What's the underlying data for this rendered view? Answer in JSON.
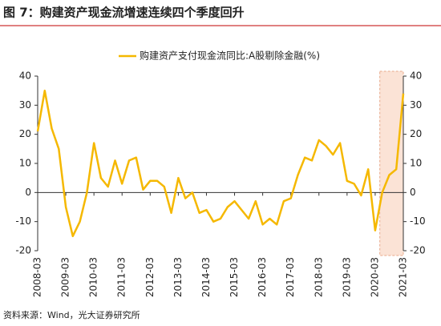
{
  "chart_data": {
    "type": "line",
    "title": "图 7：购建资产现金流增速连续四个季度回升",
    "source": "资料来源：Wind，光大证券研究所",
    "categories": [
      "2008-03",
      null,
      null,
      null,
      "2009-03",
      null,
      null,
      null,
      "2010-03",
      null,
      null,
      null,
      "2011-03",
      null,
      null,
      null,
      "2012-03",
      null,
      null,
      null,
      "2013-03",
      null,
      null,
      null,
      "2014-03",
      null,
      null,
      null,
      "2015-03",
      null,
      null,
      null,
      "2016-03",
      null,
      null,
      null,
      "2017-03",
      null,
      null,
      null,
      "2018-03",
      null,
      null,
      null,
      "2019-03",
      null,
      null,
      null,
      "2020-03",
      null,
      null,
      null,
      "2021-03"
    ],
    "series": [
      {
        "name": "购建资产支付现金流同比:A股剔除金融(%)",
        "color": "#f5b800",
        "values": [
          21,
          35,
          22,
          15,
          -5,
          -15,
          -10,
          0,
          17,
          5,
          2,
          11,
          3,
          11,
          12,
          1,
          4,
          4,
          2,
          -7,
          5,
          -2,
          0,
          -7,
          -6,
          -10,
          -9,
          -5,
          -3,
          -6,
          -9,
          -3,
          -11,
          -9,
          -11,
          -3,
          -2,
          6,
          12,
          11,
          18,
          16,
          13,
          17,
          4,
          3,
          -1,
          8,
          -13,
          0,
          6,
          8,
          34
        ]
      }
    ],
    "ylim": [
      -20,
      40
    ],
    "yticks": [
      -20,
      -10,
      0,
      10,
      20,
      30,
      40
    ],
    "y2lim": [
      -20,
      40
    ],
    "y2ticks": [
      -20,
      -10,
      0,
      10,
      20,
      30,
      40
    ],
    "legend": "top"
  }
}
